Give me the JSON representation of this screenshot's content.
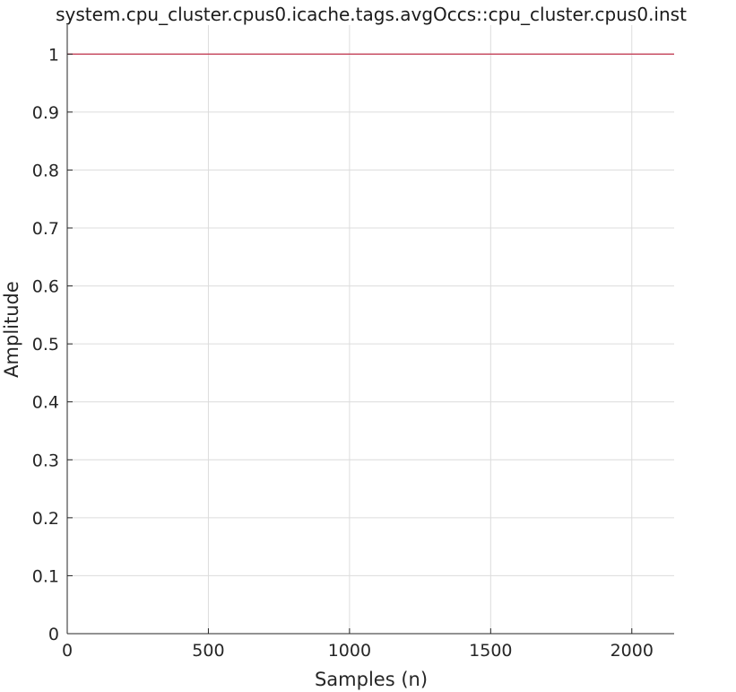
{
  "chart_data": {
    "type": "line",
    "title": "system.cpu_cluster.cpus0.icache.tags.avgOccs::cpu_cluster.cpus0.inst",
    "xlabel": "Samples (n)",
    "ylabel": "Amplitude",
    "xlim": [
      0,
      2150
    ],
    "ylim": [
      0,
      1.05
    ],
    "xticks": [
      0,
      500,
      1000,
      1500,
      2000
    ],
    "xtick_labels": [
      "0",
      "500",
      "1000",
      "1500",
      "2000"
    ],
    "yticks": [
      0,
      0.1,
      0.2,
      0.3,
      0.4,
      0.5,
      0.6,
      0.7,
      0.8,
      0.9,
      1
    ],
    "ytick_labels": [
      "0",
      "0.1",
      "0.2",
      "0.3",
      "0.4",
      "0.5",
      "0.6",
      "0.7",
      "0.8",
      "0.9",
      "1"
    ],
    "grid": true,
    "series": [
      {
        "x": [
          0,
          2150
        ],
        "y": [
          1,
          1
        ],
        "color": "#c0304a"
      }
    ]
  }
}
